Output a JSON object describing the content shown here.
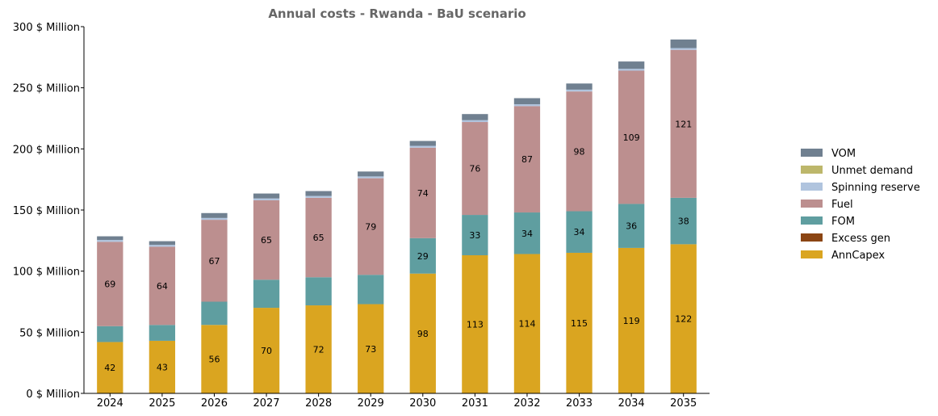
{
  "chart_data": {
    "type": "bar",
    "stacked": true,
    "title": "Annual costs - Rwanda - BaU scenario",
    "xlabel": "",
    "ylabel": "",
    "ylim": [
      0,
      300
    ],
    "y_ticks": [
      0,
      50,
      100,
      150,
      200,
      250,
      300
    ],
    "y_tick_labels": [
      "0 $ Million",
      "50 $ Million",
      "100 $ Million",
      "150 $ Million",
      "200 $ Million",
      "250 $ Million",
      "300 $ Million"
    ],
    "categories": [
      "2024",
      "2025",
      "2026",
      "2027",
      "2028",
      "2029",
      "2030",
      "2031",
      "2032",
      "2033",
      "2034",
      "2035"
    ],
    "legend_position": "right",
    "grid": false,
    "series": [
      {
        "name": "AnnCapex",
        "color": "#DAA520",
        "values": [
          42,
          43,
          56,
          70,
          72,
          73,
          98,
          113,
          114,
          115,
          119,
          122
        ],
        "labels": [
          "42",
          "43",
          "56",
          "70",
          "72",
          "73",
          "98",
          "113",
          "114",
          "115",
          "119",
          "122"
        ]
      },
      {
        "name": "Excess gen",
        "color": "#8B4513",
        "values": [
          0,
          0,
          0,
          0,
          0,
          0,
          0,
          0,
          0,
          0,
          0,
          0
        ]
      },
      {
        "name": "FOM",
        "color": "#5F9EA0",
        "values": [
          13,
          13,
          19,
          23,
          23,
          24,
          29,
          33,
          34,
          34,
          36,
          38
        ],
        "labels": [
          "",
          "",
          "",
          "",
          "",
          "",
          "29",
          "33",
          "34",
          "34",
          "36",
          "38"
        ]
      },
      {
        "name": "Fuel",
        "color": "#BC8F8F",
        "values": [
          69,
          64,
          67,
          65,
          65,
          79,
          74,
          76,
          87,
          98,
          109,
          121
        ],
        "labels": [
          "69",
          "64",
          "67",
          "65",
          "65",
          "79",
          "74",
          "76",
          "87",
          "98",
          "109",
          "121"
        ]
      },
      {
        "name": "Spinning reserve",
        "color": "#B0C4DE",
        "values": [
          1.5,
          1.5,
          1.5,
          1.5,
          1.5,
          1.5,
          1.5,
          1.5,
          1.5,
          1.5,
          1.5,
          1.5
        ]
      },
      {
        "name": "Unmet demand",
        "color": "#BDB76B",
        "values": [
          0,
          0,
          0,
          0,
          0,
          0,
          0,
          0,
          0,
          0,
          0,
          0
        ]
      },
      {
        "name": "VOM",
        "color": "#708090",
        "values": [
          3,
          3,
          4,
          4,
          4,
          4,
          4,
          5,
          5,
          5,
          6,
          7
        ]
      }
    ],
    "legend_order": [
      "VOM",
      "Unmet demand",
      "Spinning reserve",
      "Fuel",
      "FOM",
      "Excess gen",
      "AnnCapex"
    ]
  }
}
